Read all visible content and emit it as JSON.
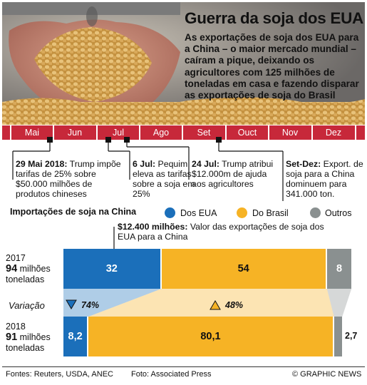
{
  "header": {
    "title": "Guerra da soja dos EUA",
    "subtitle": "As exportações de soja dos EUA para a China – o maior mercado mundial – caíram a pique, deixando os agricultores com 125 milhões de toneladas em casa e fazendo disparar as exportações de soja do Brasil"
  },
  "timeline": {
    "months": [
      "Mai",
      "Jun",
      "Jul",
      "Ago",
      "Set",
      "Ouct",
      "Nov",
      "Dez"
    ],
    "events": [
      {
        "date": "29 Mai 2018:",
        "text": " Trump impõe tarifas de 25% sobre $50.000 milhões de produtos chineses"
      },
      {
        "date": "6 Jul:",
        "text": " Pequim eleva as tarifas sobre a soja em 25%"
      },
      {
        "date": "24 Jul:",
        "text": " Trump atribui $12.000m de ajuda aos agricultores"
      },
      {
        "date": "Set-Dez:",
        "text": " Export. de soja para a China dominuem para 341.000 ton."
      }
    ]
  },
  "legend": {
    "title": "Importações de soja na China",
    "items": [
      {
        "label": "Dos EUA",
        "color": "#1b6fba"
      },
      {
        "label": "Do Brasil",
        "color": "#f6b325"
      },
      {
        "label": "Outros",
        "color": "#8a9090"
      }
    ]
  },
  "annotation": {
    "bold": "$12.400 milhões:",
    "text": " Valor das exportações de soja dos EUA para a China"
  },
  "chart_data": {
    "type": "bar",
    "orientation": "horizontal-stacked",
    "title": "Importações de soja na China",
    "unit": "milhões toneladas",
    "categories": [
      "2017",
      "2018"
    ],
    "totals": [
      {
        "year": "2017",
        "value": "94",
        "unit": "milhões",
        "unit2": "toneladas"
      },
      {
        "year": "2018",
        "value": "91",
        "unit": "milhões",
        "unit2": "toneladas"
      }
    ],
    "series": [
      {
        "name": "Dos EUA",
        "values": [
          32,
          8.2
        ],
        "labels": [
          "32",
          "8,2"
        ]
      },
      {
        "name": "Do Brasil",
        "values": [
          54,
          80.1
        ],
        "labels": [
          "54",
          "80,1"
        ]
      },
      {
        "name": "Outros",
        "values": [
          8,
          2.7
        ],
        "labels": [
          "8",
          "2,7"
        ]
      }
    ],
    "variation": {
      "label": "Variação",
      "us": "74%",
      "br": "48%"
    }
  },
  "colors": {
    "us": "#1b6fba",
    "br": "#f6b325",
    "other": "#8a9090",
    "months_bar": "#c7283a"
  },
  "footer": {
    "sources": "Fontes: Reuters, USDA, ANEC",
    "photo": "Foto: Associated Press",
    "credit": "© GRAPHIC NEWS"
  }
}
